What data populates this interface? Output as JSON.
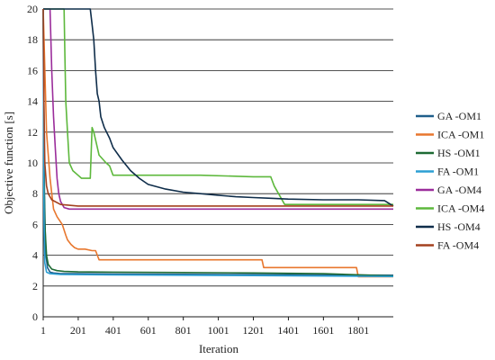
{
  "chart_data": {
    "type": "line",
    "xlabel": "Iteration",
    "ylabel": "Objective function [s]",
    "xlim": [
      1,
      2000
    ],
    "ylim": [
      0,
      20
    ],
    "x_ticks": [
      1,
      201,
      401,
      601,
      801,
      1001,
      1201,
      1401,
      1601,
      1801
    ],
    "x_tick_labels": [
      "1",
      "201",
      "401",
      "601",
      "801",
      "1001",
      "1201",
      "1401",
      "1601",
      "1801"
    ],
    "y_ticks": [
      0,
      2,
      4,
      6,
      8,
      10,
      12,
      14,
      16,
      18,
      20
    ],
    "y_tick_labels": [
      "0",
      "2",
      "4",
      "6",
      "8",
      "10",
      "12",
      "14",
      "16",
      "18",
      "20"
    ],
    "grid": "horizontal",
    "legend_position": "right",
    "series": [
      {
        "name": "GA -OM1",
        "color": "#1f5f8b",
        "x": [
          1,
          8,
          15,
          25,
          40,
          60,
          100,
          200,
          400,
          800,
          1200,
          1600,
          2000
        ],
        "y": [
          20,
          8,
          4.2,
          3.2,
          2.9,
          2.85,
          2.8,
          2.8,
          2.78,
          2.76,
          2.74,
          2.72,
          2.7
        ]
      },
      {
        "name": "ICA -OM1",
        "color": "#e8772e",
        "x": [
          1,
          20,
          40,
          60,
          80,
          110,
          130,
          140,
          160,
          180,
          200,
          240,
          280,
          300,
          320,
          340,
          360,
          600,
          900,
          1000,
          1100,
          1200,
          1250,
          1260,
          1400,
          1600,
          1790,
          1800,
          1820,
          2000
        ],
        "y": [
          20,
          12,
          9,
          7,
          6.5,
          6,
          5.3,
          5,
          4.7,
          4.5,
          4.4,
          4.4,
          4.3,
          4.3,
          3.7,
          3.7,
          3.7,
          3.7,
          3.7,
          3.7,
          3.7,
          3.7,
          3.7,
          3.2,
          3.2,
          3.2,
          3.2,
          2.6,
          2.6,
          2.6
        ]
      },
      {
        "name": "HS -OM1",
        "color": "#1e6b34",
        "x": [
          1,
          5,
          10,
          20,
          30,
          50,
          80,
          120,
          200,
          400,
          800,
          1200,
          1600,
          2000
        ],
        "y": [
          20,
          10,
          6,
          4,
          3.4,
          3.1,
          3.0,
          2.95,
          2.92,
          2.9,
          2.88,
          2.85,
          2.8,
          2.65
        ]
      },
      {
        "name": "FA -OM1",
        "color": "#2b9fd4",
        "x": [
          1,
          3,
          6,
          10,
          20,
          40,
          100,
          400,
          800,
          1200,
          1600,
          2000
        ],
        "y": [
          20,
          12,
          6,
          3.5,
          2.9,
          2.8,
          2.75,
          2.72,
          2.7,
          2.68,
          2.65,
          2.62
        ]
      },
      {
        "name": "GA -OM4",
        "color": "#9b2d9b",
        "x": [
          1,
          40,
          50,
          60,
          70,
          80,
          90,
          100,
          120,
          150,
          200,
          400,
          800,
          1200,
          1600,
          2000
        ],
        "y": [
          20,
          20,
          16,
          13,
          11,
          9,
          8,
          7.5,
          7.1,
          7.0,
          7.0,
          7.0,
          7.0,
          7.0,
          7.0,
          7.0
        ]
      },
      {
        "name": "ICA -OM4",
        "color": "#5db83c",
        "x": [
          1,
          120,
          125,
          130,
          140,
          150,
          170,
          200,
          220,
          230,
          240,
          250,
          270,
          280,
          290,
          300,
          320,
          360,
          380,
          400,
          600,
          900,
          1200,
          1300,
          1320,
          1380,
          1600,
          2000
        ],
        "y": [
          20,
          20,
          17,
          14,
          12,
          10,
          9.5,
          9.2,
          9,
          9,
          9,
          9,
          9,
          12.3,
          12,
          11.5,
          10.5,
          10,
          9.8,
          9.2,
          9.2,
          9.2,
          9.1,
          9.1,
          8.5,
          7.3,
          7.3,
          7.3
        ]
      },
      {
        "name": "HS -OM4",
        "color": "#0f2d4a",
        "x": [
          1,
          270,
          280,
          290,
          300,
          310,
          320,
          330,
          350,
          380,
          400,
          450,
          500,
          550,
          600,
          700,
          800,
          900,
          1000,
          1100,
          1200,
          1300,
          1400,
          1600,
          1800,
          1950,
          2000
        ],
        "y": [
          20,
          20,
          19,
          18,
          16,
          14.5,
          14,
          13,
          12.3,
          11.6,
          11,
          10.2,
          9.5,
          9,
          8.6,
          8.3,
          8.1,
          8.0,
          7.9,
          7.8,
          7.75,
          7.7,
          7.65,
          7.6,
          7.6,
          7.55,
          7.2
        ]
      },
      {
        "name": "FA -OM4",
        "color": "#a3411f",
        "x": [
          1,
          5,
          10,
          20,
          30,
          50,
          100,
          200,
          400,
          800,
          1200,
          1600,
          2000
        ],
        "y": [
          20,
          14,
          10,
          8.5,
          8,
          7.6,
          7.3,
          7.2,
          7.2,
          7.2,
          7.2,
          7.2,
          7.2
        ]
      }
    ]
  }
}
